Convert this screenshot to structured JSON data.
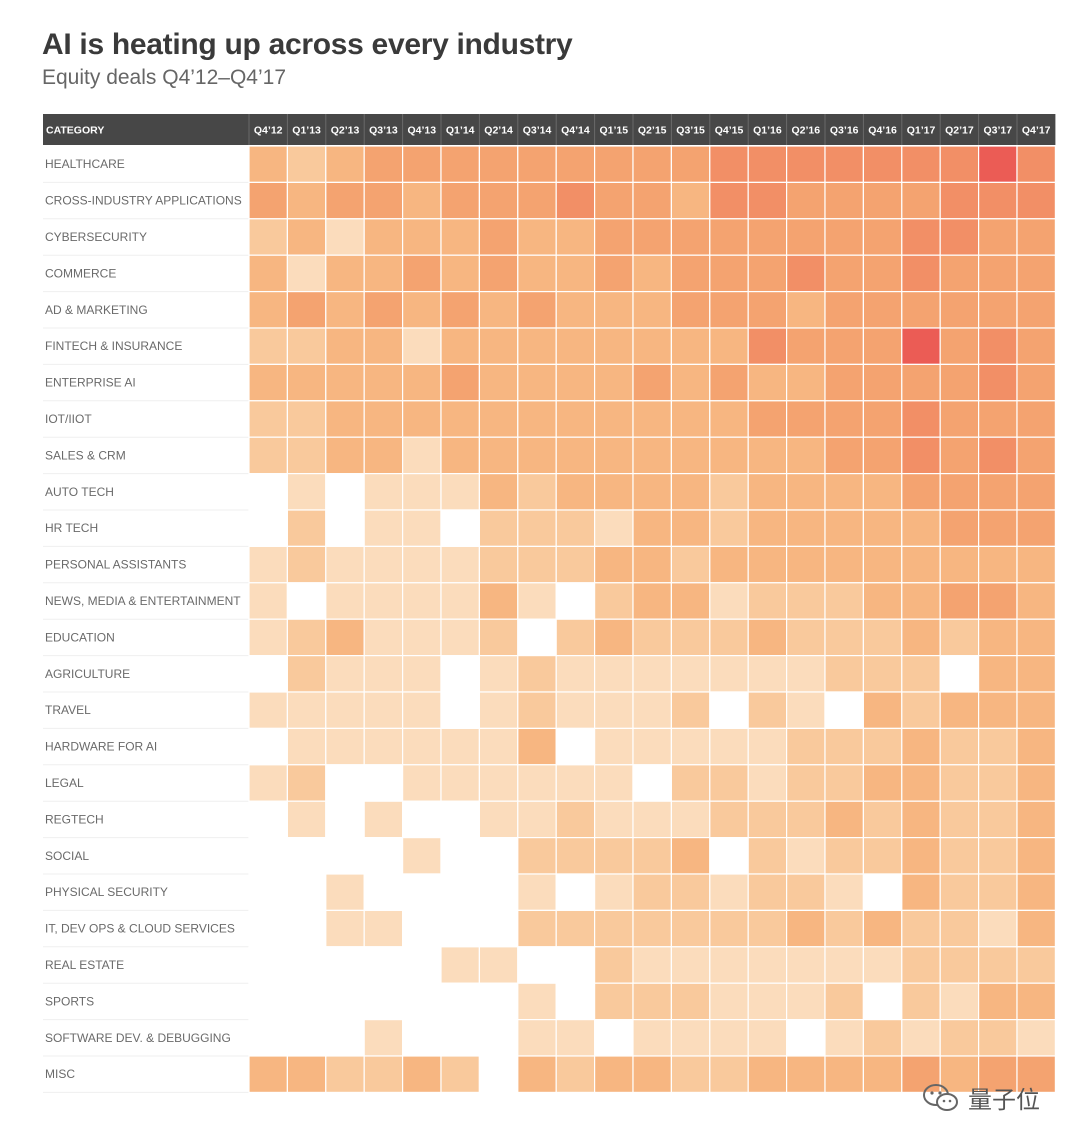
{
  "header": {
    "title": "AI is heating up across every industry",
    "subtitle": "Equity deals Q4’12–Q4’17"
  },
  "palette": [
    "#ffffff",
    "#fbdcbc",
    "#f9c99c",
    "#f7b681",
    "#f4a370",
    "#f28f66",
    "#eb5c55"
  ],
  "watermark": {
    "text": "量子位"
  },
  "chart_data": {
    "type": "heatmap",
    "title": "AI is heating up across every industry",
    "subtitle": "Equity deals Q4’12–Q4’17",
    "category_header": "CATEGORY",
    "value_scale": "0 = no deals (white), 6 = most deals (red)",
    "columns": [
      "Q4’12",
      "Q1’13",
      "Q2’13",
      "Q3’13",
      "Q4’13",
      "Q1’14",
      "Q2’14",
      "Q3’14",
      "Q4’14",
      "Q1’15",
      "Q2’15",
      "Q3’15",
      "Q4’15",
      "Q1’16",
      "Q2’16",
      "Q3’16",
      "Q4’16",
      "Q1’17",
      "Q2’17",
      "Q3’17",
      "Q4’17"
    ],
    "rows": [
      {
        "name": "HEALTHCARE",
        "values": [
          3,
          2,
          3,
          4,
          4,
          4,
          4,
          4,
          4,
          4,
          4,
          4,
          5,
          5,
          5,
          5,
          5,
          5,
          5,
          6,
          5
        ]
      },
      {
        "name": "CROSS-INDUSTRY APPLICATIONS",
        "values": [
          4,
          3,
          4,
          4,
          3,
          4,
          4,
          4,
          5,
          4,
          4,
          3,
          5,
          5,
          4,
          4,
          4,
          4,
          5,
          5,
          5
        ]
      },
      {
        "name": "CYBERSECURITY",
        "values": [
          2,
          3,
          1,
          3,
          3,
          3,
          4,
          3,
          3,
          4,
          4,
          4,
          4,
          4,
          4,
          4,
          4,
          5,
          5,
          4,
          4
        ]
      },
      {
        "name": "COMMERCE",
        "values": [
          3,
          1,
          3,
          3,
          4,
          3,
          4,
          3,
          3,
          4,
          3,
          4,
          4,
          4,
          5,
          4,
          4,
          5,
          4,
          4,
          4
        ]
      },
      {
        "name": "AD & MARKETING",
        "values": [
          3,
          4,
          3,
          4,
          3,
          4,
          3,
          4,
          3,
          3,
          3,
          4,
          4,
          4,
          3,
          4,
          4,
          4,
          4,
          4,
          4
        ]
      },
      {
        "name": "FINTECH & INSURANCE",
        "values": [
          2,
          2,
          3,
          3,
          1,
          3,
          3,
          3,
          3,
          3,
          3,
          3,
          3,
          5,
          4,
          4,
          4,
          6,
          4,
          5,
          4
        ]
      },
      {
        "name": "ENTERPRISE AI",
        "values": [
          3,
          3,
          3,
          3,
          3,
          4,
          3,
          3,
          3,
          3,
          4,
          3,
          4,
          3,
          3,
          4,
          4,
          4,
          4,
          5,
          4
        ]
      },
      {
        "name": "IOT/IIOT",
        "values": [
          2,
          2,
          3,
          3,
          3,
          3,
          3,
          3,
          3,
          3,
          3,
          3,
          3,
          4,
          4,
          4,
          4,
          5,
          4,
          4,
          4
        ]
      },
      {
        "name": "SALES & CRM",
        "values": [
          2,
          2,
          3,
          3,
          1,
          3,
          3,
          3,
          3,
          3,
          3,
          3,
          3,
          3,
          3,
          4,
          4,
          5,
          4,
          5,
          4
        ]
      },
      {
        "name": "AUTO TECH",
        "values": [
          0,
          1,
          0,
          1,
          1,
          1,
          3,
          2,
          3,
          3,
          3,
          3,
          2,
          3,
          3,
          3,
          3,
          4,
          4,
          4,
          4
        ]
      },
      {
        "name": "HR TECH",
        "values": [
          0,
          2,
          0,
          1,
          1,
          0,
          2,
          2,
          2,
          1,
          3,
          3,
          2,
          3,
          3,
          3,
          3,
          3,
          4,
          4,
          4
        ]
      },
      {
        "name": "PERSONAL ASSISTANTS",
        "values": [
          1,
          2,
          1,
          1,
          1,
          1,
          2,
          2,
          2,
          3,
          3,
          2,
          3,
          3,
          3,
          3,
          3,
          3,
          3,
          3,
          3
        ]
      },
      {
        "name": "NEWS, MEDIA & ENTERTAINMENT",
        "values": [
          1,
          0,
          1,
          1,
          1,
          1,
          3,
          1,
          0,
          2,
          3,
          3,
          1,
          2,
          2,
          2,
          3,
          3,
          4,
          4,
          3
        ]
      },
      {
        "name": "EDUCATION",
        "values": [
          1,
          2,
          3,
          1,
          1,
          1,
          2,
          0,
          2,
          3,
          2,
          2,
          2,
          3,
          2,
          2,
          2,
          3,
          2,
          3,
          3
        ]
      },
      {
        "name": "AGRICULTURE",
        "values": [
          0,
          2,
          1,
          1,
          1,
          0,
          1,
          2,
          1,
          1,
          1,
          1,
          1,
          1,
          1,
          2,
          2,
          2,
          0,
          3,
          3
        ]
      },
      {
        "name": "TRAVEL",
        "values": [
          1,
          1,
          1,
          1,
          1,
          0,
          1,
          2,
          1,
          1,
          1,
          2,
          0,
          2,
          1,
          0,
          3,
          2,
          3,
          3,
          3
        ]
      },
      {
        "name": "HARDWARE FOR AI",
        "values": [
          0,
          1,
          1,
          1,
          1,
          1,
          1,
          3,
          0,
          1,
          1,
          1,
          1,
          1,
          2,
          2,
          2,
          3,
          2,
          2,
          3
        ]
      },
      {
        "name": "LEGAL",
        "values": [
          1,
          2,
          0,
          0,
          1,
          1,
          1,
          1,
          1,
          1,
          0,
          2,
          2,
          1,
          2,
          2,
          3,
          3,
          2,
          2,
          3
        ]
      },
      {
        "name": "REGTECH",
        "values": [
          0,
          1,
          0,
          1,
          0,
          0,
          1,
          1,
          2,
          1,
          1,
          1,
          2,
          2,
          2,
          3,
          2,
          3,
          2,
          2,
          3
        ]
      },
      {
        "name": "SOCIAL",
        "values": [
          0,
          0,
          0,
          0,
          1,
          0,
          0,
          2,
          2,
          2,
          2,
          3,
          0,
          2,
          1,
          2,
          2,
          3,
          2,
          2,
          3
        ]
      },
      {
        "name": "PHYSICAL SECURITY",
        "values": [
          0,
          0,
          1,
          0,
          0,
          0,
          0,
          1,
          0,
          1,
          2,
          2,
          1,
          2,
          2,
          1,
          0,
          3,
          2,
          2,
          3
        ]
      },
      {
        "name": "IT, DEV OPS & CLOUD SERVICES",
        "values": [
          0,
          0,
          1,
          1,
          0,
          0,
          0,
          2,
          2,
          2,
          2,
          2,
          2,
          2,
          3,
          2,
          3,
          2,
          2,
          1,
          3
        ]
      },
      {
        "name": "REAL ESTATE",
        "values": [
          0,
          0,
          0,
          0,
          0,
          1,
          1,
          0,
          0,
          2,
          1,
          1,
          1,
          1,
          1,
          1,
          1,
          2,
          2,
          2,
          2
        ]
      },
      {
        "name": "SPORTS",
        "values": [
          0,
          0,
          0,
          0,
          0,
          0,
          0,
          1,
          0,
          2,
          2,
          2,
          1,
          1,
          1,
          2,
          0,
          2,
          1,
          3,
          3
        ]
      },
      {
        "name": "SOFTWARE DEV. & DEBUGGING",
        "values": [
          0,
          0,
          0,
          1,
          0,
          0,
          0,
          1,
          1,
          0,
          1,
          1,
          1,
          1,
          0,
          1,
          2,
          1,
          2,
          2,
          1
        ]
      },
      {
        "name": "MISC",
        "values": [
          3,
          3,
          2,
          2,
          3,
          2,
          0,
          3,
          2,
          3,
          3,
          2,
          2,
          3,
          3,
          3,
          3,
          4,
          3,
          4,
          4
        ]
      }
    ]
  }
}
